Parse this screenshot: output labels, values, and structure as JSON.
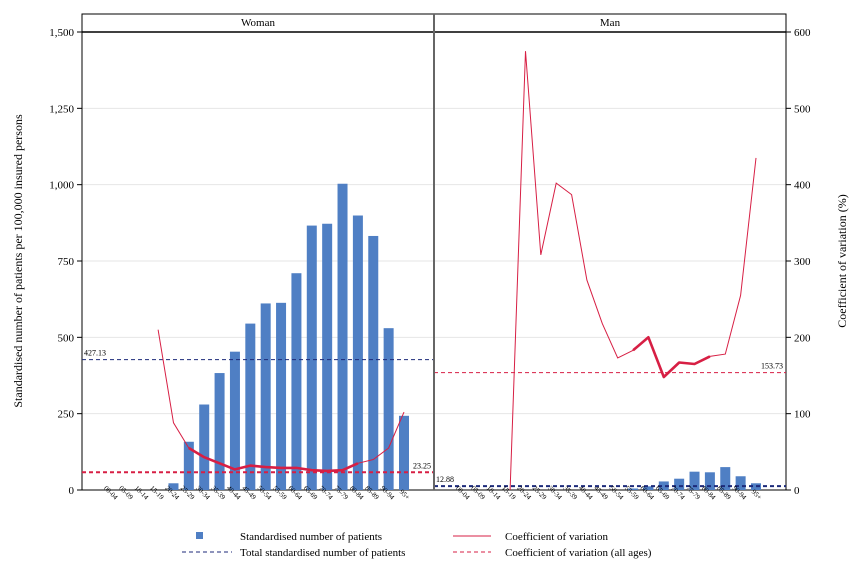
{
  "chart_data": {
    "type": "bar",
    "panels": [
      {
        "title": "Woman",
        "categories": [
          "00-04",
          "05-09",
          "10-14",
          "15-19",
          "20-24",
          "25-29",
          "30-34",
          "35-39",
          "40-44",
          "45-49",
          "50-54",
          "55-59",
          "60-64",
          "65-69",
          "70-74",
          "75-79",
          "80-84",
          "85-89",
          "90-94",
          "95+"
        ],
        "bars": [
          0,
          0,
          0,
          0,
          22,
          158,
          280,
          383,
          453,
          545,
          611,
          613,
          710,
          866,
          872,
          1003,
          899,
          832,
          530,
          243
        ],
        "cv": [
          null,
          null,
          null,
          210,
          88,
          55,
          43,
          35,
          27,
          32,
          30,
          29,
          29,
          26,
          25,
          26,
          35,
          40,
          55,
          102
        ],
        "cv_highlight": [
          null,
          null,
          null,
          null,
          null,
          55,
          43,
          35,
          27,
          32,
          30,
          29,
          29,
          26,
          25,
          26,
          35,
          null,
          null,
          null
        ],
        "total_bar": 427.13,
        "total_bar_label": "427.13",
        "cv_all": 23.25,
        "cv_all_label": "23.25"
      },
      {
        "title": "Man",
        "categories": [
          "00-04",
          "05-09",
          "10-14",
          "15-19",
          "20-24",
          "25-29",
          "30-34",
          "35-39",
          "40-44",
          "45-49",
          "50-54",
          "55-59",
          "60-64",
          "65-69",
          "70-74",
          "75-79",
          "80-84",
          "85-89",
          "90-94",
          "95+"
        ],
        "bars": [
          0,
          0,
          0,
          0,
          0,
          0,
          0,
          0,
          0,
          0,
          0,
          5,
          12,
          28,
          37,
          60,
          58,
          75,
          45,
          22
        ],
        "cv": [
          null,
          null,
          null,
          0,
          575,
          308,
          402,
          387,
          275,
          218,
          173,
          183,
          200,
          148,
          167,
          165,
          175,
          178,
          255,
          435
        ],
        "cv_highlight": [
          null,
          null,
          null,
          null,
          null,
          null,
          null,
          null,
          null,
          null,
          null,
          183,
          200,
          148,
          167,
          165,
          175,
          null,
          null,
          null
        ],
        "total_bar": 12.88,
        "total_bar_label": "12.88",
        "cv_all": 153.73,
        "cv_all_label": "153.73"
      }
    ],
    "ylabel_left": "Standardised number of patients per 100,000 insured persons",
    "ylabel_right": "Coefficient of variation (%)",
    "ylim_left": [
      0,
      1500
    ],
    "ylim_right": [
      0,
      600
    ],
    "left_ticks": [
      0,
      250,
      500,
      750,
      1000,
      1250,
      1500
    ],
    "left_tick_labels": [
      "0",
      "250",
      "500",
      "750",
      "1,000",
      "1,250",
      "1,500"
    ],
    "right_ticks": [
      0,
      100,
      200,
      300,
      400,
      500,
      600
    ],
    "right_tick_labels": [
      "0",
      "100",
      "200",
      "300",
      "400",
      "500",
      "600"
    ],
    "legend": [
      {
        "label": "Standardised number of patients",
        "kind": "bar"
      },
      {
        "label": "Coefficient of variation",
        "kind": "line"
      },
      {
        "label": "Total standardised number of patients",
        "kind": "dash-blue"
      },
      {
        "label": "Coefficient of variation (all ages)",
        "kind": "dash-red"
      }
    ],
    "legend_placement": "bottom",
    "colors": {
      "bar": "#4f7fc4",
      "cv_line": "#d71f44",
      "total_dash": "#1c2a7a",
      "grid": "#e6e6e6"
    },
    "grid": true
  }
}
